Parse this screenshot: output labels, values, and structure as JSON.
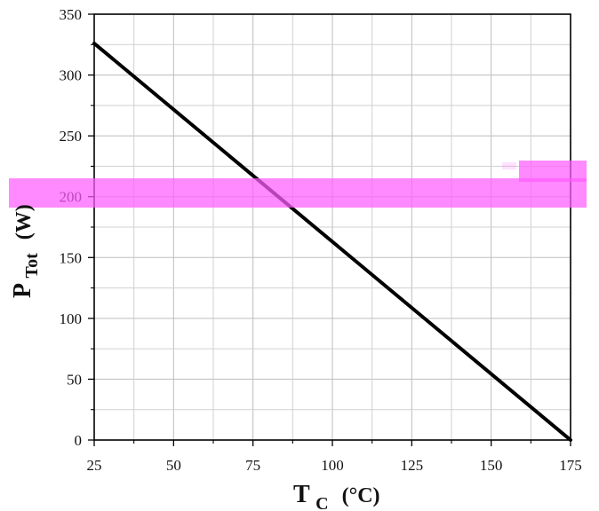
{
  "chart_data": {
    "type": "line",
    "title": "",
    "xlabel": {
      "main": "T",
      "sub": "C",
      "unit": "(°C)"
    },
    "ylabel": {
      "main": "P",
      "sub": "Tot",
      "unit": "(W)"
    },
    "x": [
      25,
      175
    ],
    "series": [
      {
        "values": [
          326,
          0
        ],
        "color": "#000000"
      }
    ],
    "xlim": [
      25,
      175
    ],
    "ylim": [
      0,
      350
    ],
    "xticks": [
      25,
      50,
      75,
      100,
      125,
      150,
      175
    ],
    "yticks": [
      0,
      50,
      100,
      150,
      200,
      250,
      300,
      350
    ],
    "xtick_labels": [
      "25",
      "50",
      "75",
      "100",
      "125",
      "150",
      "175"
    ],
    "ytick_labels": [
      "0",
      "50",
      "100",
      "150",
      "200",
      "250",
      "300",
      "350"
    ],
    "grid": true,
    "legend": "none",
    "colors": {
      "grid": "#bdbdbd",
      "axis": "#000000",
      "overlay": "#ff5cff"
    },
    "redaction_overlays": 2
  }
}
